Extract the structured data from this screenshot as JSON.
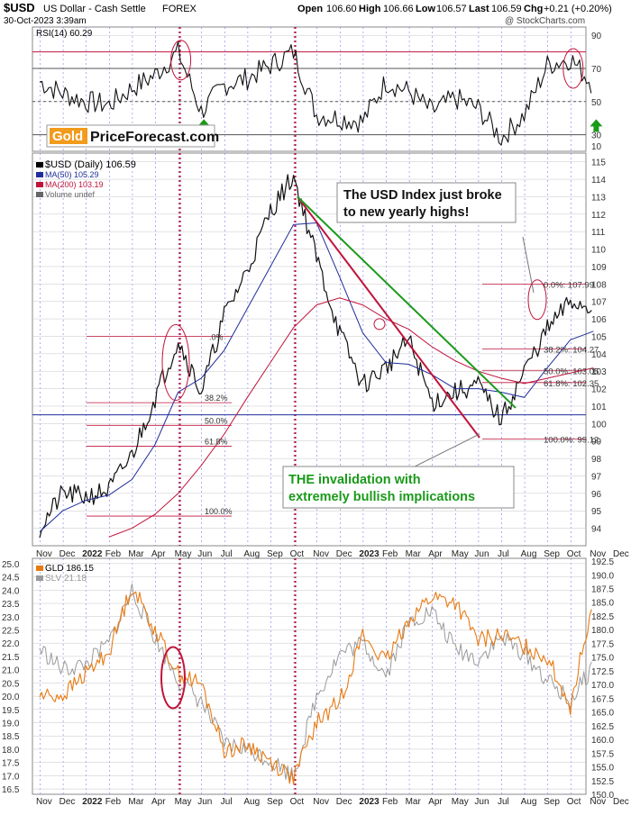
{
  "header": {
    "symbol": "$USD",
    "name": "US Dollar - Cash Settle",
    "exchange": "FOREX",
    "date": "30-Oct-2023 3:39am",
    "open_label": "Open",
    "open": "106.60",
    "high_label": "High",
    "high": "106.66",
    "low_label": "Low",
    "low": "106.57",
    "last_label": "Last",
    "last": "106.59",
    "chg_label": "Chg",
    "chg": "+0.21 (+0.20%)",
    "credit": "@ StockCharts.com"
  },
  "logo": {
    "gold": "Gold",
    "rest": "PriceForecast.com"
  },
  "colors": {
    "usd": "#000000",
    "ma50": "#1f2e9c",
    "ma200": "#c0143c",
    "gld": "#e87a12",
    "slv": "#9a9a9a",
    "green": "#1a9a1a",
    "red": "#c0143c",
    "grid": "#c6c6c6",
    "vgrid": "#7a7af0"
  },
  "chart_data": [
    {
      "type": "line",
      "title": "RSI(14) 60.29",
      "legend": [
        "RSI(14) 60.29"
      ],
      "ylim": [
        20,
        95
      ],
      "yticks": [
        10,
        30,
        50,
        70,
        90
      ],
      "reference_lines": [
        80,
        70,
        50,
        30
      ],
      "x": [
        "2021-11",
        "2021-12",
        "2022-01",
        "2022-02",
        "2022-03",
        "2022-04",
        "2022-05",
        "2022-06",
        "2022-07",
        "2022-08",
        "2022-09",
        "2022-10",
        "2022-11",
        "2022-12",
        "2023-01",
        "2023-02",
        "2023-03",
        "2023-04",
        "2023-05",
        "2023-06",
        "2023-07",
        "2023-08",
        "2023-09",
        "2023-10",
        "2023-10-30"
      ],
      "values": [
        62,
        55,
        50,
        48,
        58,
        66,
        80,
        44,
        60,
        64,
        72,
        80,
        42,
        40,
        38,
        62,
        56,
        44,
        52,
        46,
        28,
        42,
        72,
        76,
        60
      ],
      "annotations": [
        {
          "type": "ellipse",
          "x": "2022-05",
          "y": 75,
          "color": "#c0143c"
        },
        {
          "type": "ellipse",
          "x": "2023-10",
          "y": 70,
          "color": "#c0143c"
        },
        {
          "type": "arrow-up",
          "x": "2022-06",
          "y": 35,
          "color": "#1a9a1a"
        },
        {
          "type": "arrow-up",
          "x": "2023-11",
          "y": 35,
          "color": "#1a9a1a"
        }
      ]
    },
    {
      "type": "line",
      "legend": [
        "$USD (Daily) 106.59",
        "MA(50) 105.29",
        "MA(200) 103.19",
        "Volume undef"
      ],
      "ylim": [
        93,
        115.5
      ],
      "yticks": [
        94,
        95,
        96,
        97,
        98,
        99,
        100,
        101,
        102,
        103,
        104,
        105,
        106,
        107,
        108,
        109,
        110,
        111,
        112,
        113,
        114,
        115
      ],
      "x": [
        "2021-11",
        "2021-12",
        "2022-01",
        "2022-02",
        "2022-03",
        "2022-04",
        "2022-05",
        "2022-06",
        "2022-07",
        "2022-08",
        "2022-09",
        "2022-10",
        "2022-11",
        "2022-12",
        "2023-01",
        "2023-02",
        "2023-03",
        "2023-04",
        "2023-05",
        "2023-06",
        "2023-07",
        "2023-08",
        "2023-09",
        "2023-10",
        "2023-10-30"
      ],
      "series": [
        {
          "name": "$USD (Daily) 106.59",
          "values": [
            94.0,
            96.0,
            95.8,
            96.2,
            98.2,
            101.5,
            104.8,
            101.8,
            106.2,
            108.8,
            112.2,
            114.2,
            109.5,
            105.2,
            102.2,
            103.2,
            104.8,
            101.2,
            101.8,
            102.2,
            100.2,
            103.0,
            105.4,
            107.0,
            106.6
          ]
        },
        {
          "name": "MA(50) 105.29",
          "values": [
            93.8,
            95.0,
            95.6,
            95.9,
            96.8,
            98.8,
            101.8,
            102.6,
            104.2,
            106.6,
            109.0,
            111.4,
            111.5,
            108.4,
            105.2,
            103.5,
            103.4,
            102.8,
            102.0,
            102.0,
            101.8,
            101.5,
            103.2,
            104.8,
            105.29
          ]
        },
        {
          "name": "MA(200) 103.19",
          "values": [
            null,
            null,
            null,
            93.5,
            94.0,
            94.8,
            96.0,
            97.6,
            99.4,
            101.5,
            103.5,
            105.5,
            106.8,
            107.2,
            106.8,
            106.0,
            105.4,
            104.4,
            103.6,
            103.0,
            102.6,
            102.3,
            102.6,
            102.9,
            103.19
          ]
        }
      ],
      "fib_levels": [
        {
          "label": "38.2%",
          "value": 101.2
        },
        {
          "label": "50.0%",
          "value": 99.9
        },
        {
          "label": "61.8%",
          "value": 98.7
        },
        {
          "label": "100.0%",
          "value": 94.7
        },
        {
          "label": "0.0%: 107.99",
          "value": 107.99
        },
        {
          "label": "38.2%: 104.27",
          "value": 104.27
        },
        {
          "label": "50.0%: 103.05",
          "value": 103.05
        },
        {
          "label": "61.8%: 102.35",
          "value": 102.35
        },
        {
          "label": "100.0%: 99.12",
          "value": 99.12
        }
      ],
      "annotations": [
        {
          "type": "callout",
          "text": "The USD Index just broke to new yearly highs!"
        },
        {
          "type": "callout",
          "text": "THE invalidation with extremely bullish implications"
        }
      ],
      "xlabels": [
        "Nov",
        "Dec",
        "2022",
        "Feb",
        "Mar",
        "Apr",
        "May",
        "Jun",
        "Jul",
        "Aug",
        "Sep",
        "Oct",
        "Nov",
        "Dec",
        "2023",
        "Feb",
        "Mar",
        "Apr",
        "May",
        "Jun",
        "Jul",
        "Aug",
        "Sep",
        "Oct",
        "Nov",
        "Dec"
      ]
    },
    {
      "type": "line",
      "legend": [
        "GLD 186.15",
        "SLV 21.18"
      ],
      "ylim_left": [
        16.3,
        25.2
      ],
      "ylim_right": [
        150,
        193
      ],
      "yticks_left": [
        16.5,
        17.0,
        17.5,
        18.0,
        18.5,
        19.0,
        19.5,
        20.0,
        20.5,
        21.0,
        21.5,
        22.0,
        22.5,
        23.0,
        23.5,
        24.0,
        24.5,
        25.0
      ],
      "yticks_right": [
        150.0,
        152.5,
        155.0,
        157.5,
        160.0,
        162.5,
        165.0,
        167.5,
        170.0,
        172.5,
        175.0,
        177.5,
        180.0,
        182.5,
        185.0,
        187.5,
        190.0,
        192.5
      ],
      "x": [
        "2021-11",
        "2021-12",
        "2022-01",
        "2022-02",
        "2022-03",
        "2022-04",
        "2022-05",
        "2022-06",
        "2022-07",
        "2022-08",
        "2022-09",
        "2022-10",
        "2022-11",
        "2022-12",
        "2023-01",
        "2023-02",
        "2023-03",
        "2023-04",
        "2023-05",
        "2023-06",
        "2023-07",
        "2023-08",
        "2023-09",
        "2023-10",
        "2023-10-30"
      ],
      "series": [
        {
          "name": "GLD 186.15",
          "values": [
            168,
            168,
            172,
            176,
            188,
            180,
            172,
            170,
            158,
            159,
            156,
            153,
            163,
            167,
            179,
            174,
            182,
            186,
            185,
            178,
            179,
            177,
            175,
            166,
            186
          ]
        },
        {
          "name": "SLV 21.18",
          "values": [
            21.8,
            21.0,
            21.2,
            22.0,
            24.0,
            22.2,
            20.6,
            19.8,
            18.2,
            18.0,
            17.6,
            17.0,
            20.0,
            21.6,
            22.0,
            20.8,
            22.8,
            23.2,
            21.8,
            21.4,
            22.2,
            21.6,
            20.6,
            19.8,
            21.18
          ]
        }
      ],
      "annotations": [
        {
          "type": "ellipse",
          "x": "2022-05",
          "color": "#c0143c"
        }
      ],
      "xlabels": [
        "Nov",
        "Dec",
        "2022",
        "Feb",
        "Mar",
        "Apr",
        "May",
        "Jun",
        "Jul",
        "Aug",
        "Sep",
        "Oct",
        "Nov",
        "Dec",
        "2023",
        "Feb",
        "Mar",
        "Apr",
        "May",
        "Jun",
        "Jul",
        "Aug",
        "Sep",
        "Oct",
        "Nov",
        "Dec"
      ]
    }
  ]
}
